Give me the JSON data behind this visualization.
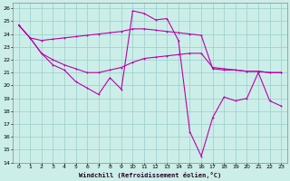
{
  "xlabel": "Windchill (Refroidissement éolien,°C)",
  "background_color": "#cceee8",
  "grid_color": "#99cccc",
  "line_color": "#bb00aa",
  "xlim": [
    -0.5,
    23.5
  ],
  "ylim": [
    14,
    26.4
  ],
  "xticks": [
    0,
    1,
    2,
    3,
    4,
    5,
    6,
    7,
    8,
    9,
    10,
    11,
    12,
    13,
    14,
    15,
    16,
    17,
    18,
    19,
    20,
    21,
    22,
    23
  ],
  "yticks": [
    14,
    15,
    16,
    17,
    18,
    19,
    20,
    21,
    22,
    23,
    24,
    25,
    26
  ],
  "line1_x": [
    0,
    1,
    2,
    3,
    4,
    5,
    6,
    7,
    8,
    9,
    10,
    11,
    12,
    13,
    14,
    15,
    16,
    17,
    18,
    19,
    20,
    21,
    22,
    23
  ],
  "line1_y": [
    24.7,
    23.7,
    23.5,
    23.6,
    23.7,
    23.8,
    23.9,
    24.0,
    24.1,
    24.2,
    24.4,
    24.4,
    24.3,
    24.2,
    24.1,
    24.0,
    23.9,
    21.3,
    21.2,
    21.2,
    21.1,
    21.1,
    21.0,
    21.0
  ],
  "line2_x": [
    0,
    1,
    2,
    3,
    4,
    5,
    6,
    7,
    8,
    9,
    10,
    11,
    12,
    13,
    14,
    15,
    16,
    17,
    18,
    19,
    20,
    21,
    22,
    23
  ],
  "line2_y": [
    24.7,
    23.7,
    22.5,
    22.0,
    21.6,
    21.3,
    21.0,
    21.0,
    21.2,
    21.4,
    21.8,
    22.1,
    22.2,
    22.3,
    22.4,
    22.5,
    22.5,
    21.4,
    21.3,
    21.2,
    21.1,
    21.1,
    21.0,
    21.0
  ],
  "line3_x": [
    0,
    1,
    2,
    3,
    4,
    5,
    6,
    7,
    8,
    9,
    10,
    11,
    12,
    13,
    14,
    15,
    16,
    17,
    18,
    19,
    20,
    21,
    22,
    23
  ],
  "line3_y": [
    24.7,
    23.7,
    22.5,
    21.6,
    21.2,
    20.3,
    19.8,
    19.3,
    20.6,
    19.7,
    25.8,
    25.6,
    25.1,
    25.2,
    23.5,
    16.4,
    14.5,
    17.5,
    19.1,
    18.8,
    19.0,
    21.0,
    18.8,
    18.4
  ]
}
